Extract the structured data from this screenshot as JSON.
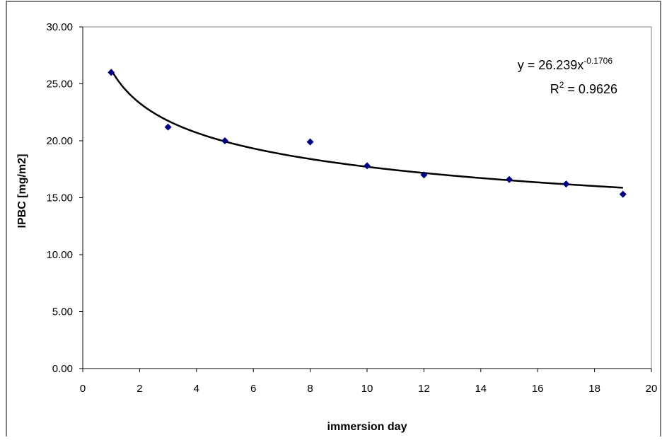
{
  "chart_data": {
    "type": "scatter",
    "x_label": "immersion day",
    "y_label": "IPBC [mg/m2]",
    "x": [
      1,
      3,
      5,
      8,
      10,
      12,
      15,
      17,
      19
    ],
    "series": [
      {
        "color": "#000080",
        "values": [
          26.0,
          21.2,
          20.0,
          19.9,
          17.8,
          17.0,
          16.6,
          16.2,
          15.3
        ]
      }
    ],
    "xlim": [
      0,
      20
    ],
    "xticks": [
      0,
      2,
      4,
      6,
      8,
      10,
      12,
      14,
      16,
      18,
      20
    ],
    "ylim": [
      0,
      30
    ],
    "yticks": [
      {
        "value": 0,
        "label": "0.00"
      },
      {
        "value": 5,
        "label": "5.00"
      },
      {
        "value": 10,
        "label": "10.00"
      },
      {
        "value": 15,
        "label": "15.00"
      },
      {
        "value": 20,
        "label": "20.00"
      },
      {
        "value": 25,
        "label": "25.00"
      },
      {
        "value": 30,
        "label": "30.00"
      }
    ],
    "trendline": {
      "type": "power",
      "coefficient": 26.239,
      "exponent": -0.1706,
      "color": "#000000"
    },
    "equation": {
      "text": "y = 26.239x",
      "superscript": "-0.1706"
    },
    "r_squared": {
      "text": "R",
      "superscript": "2",
      "rest": " = 0.9626"
    }
  }
}
